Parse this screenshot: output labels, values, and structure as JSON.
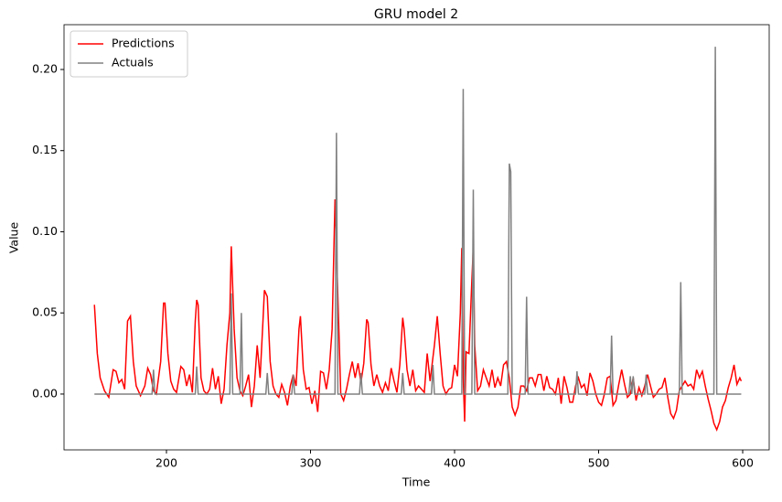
{
  "chart_data": {
    "type": "line",
    "title": "GRU model 2",
    "x_label": "Time",
    "y_label": "Value",
    "xlim": [
      128.9,
      618.4
    ],
    "ylim": [
      -0.0344,
      0.2276
    ],
    "xticks": [
      200,
      300,
      400,
      500,
      600
    ],
    "yticks": [
      {
        "value": 0,
        "label": "0.00"
      },
      0.05,
      {
        "value": 0.1,
        "label": "0.10"
      },
      0.15,
      {
        "value": 0.2,
        "label": "0.20"
      }
    ],
    "legend": "upper left",
    "series": [
      {
        "name": "Predictions",
        "color": "#ff0000",
        "x": [
          150,
          152,
          154,
          157,
          160,
          163,
          165,
          167,
          169,
          171,
          173,
          175,
          177,
          179,
          182,
          185,
          187,
          189,
          191,
          193,
          196,
          198,
          199,
          201,
          203,
          205,
          207,
          210,
          212,
          214,
          216,
          218,
          220,
          221,
          222,
          224,
          226,
          228,
          230,
          232,
          234,
          236,
          238,
          240,
          242,
          244,
          245,
          247,
          249,
          251,
          253,
          255,
          257,
          259,
          261,
          263,
          265,
          267,
          268,
          270,
          272,
          274,
          276,
          278,
          280,
          282,
          284,
          286,
          288,
          290,
          292,
          293,
          295,
          297,
          299,
          301,
          303,
          305,
          307,
          309,
          311,
          313,
          315,
          317,
          319,
          321,
          323,
          325,
          327,
          329,
          331,
          333,
          335,
          337,
          339,
          340,
          342,
          344,
          346,
          348,
          350,
          352,
          354,
          356,
          358,
          360,
          362,
          364,
          365,
          367,
          369,
          371,
          373,
          375,
          377,
          379,
          381,
          383,
          386,
          388,
          390,
          392,
          394,
          396,
          398,
          400,
          402,
          404,
          405,
          406,
          407,
          408,
          410,
          412,
          413,
          414,
          416,
          418,
          420,
          422,
          424,
          426,
          428,
          430,
          432,
          434,
          436,
          438,
          440,
          442,
          444,
          446,
          448,
          450,
          452,
          454,
          456,
          458,
          460,
          462,
          464,
          466,
          468,
          470,
          472,
          474,
          476,
          478,
          480,
          482,
          484,
          486,
          488,
          490,
          492,
          494,
          496,
          498,
          500,
          502,
          504,
          506,
          508,
          510,
          512,
          514,
          516,
          518,
          520,
          522,
          524,
          526,
          528,
          530,
          532,
          534,
          536,
          538,
          540,
          542,
          544,
          546,
          548,
          550,
          552,
          554,
          556,
          558,
          560,
          562,
          564,
          566,
          568,
          570,
          572,
          574,
          576,
          578,
          580,
          582,
          584,
          586,
          588,
          590,
          592,
          594,
          596,
          598,
          599
        ],
        "values": [
          0.055,
          0.025,
          0.01,
          0.002,
          -0.002,
          0.015,
          0.014,
          0.007,
          0.009,
          0.003,
          0.045,
          0.048,
          0.02,
          0.005,
          -0.001,
          0.005,
          0.016,
          0.012,
          0.002,
          0.0,
          0.02,
          0.056,
          0.056,
          0.025,
          0.008,
          0.003,
          0.001,
          0.017,
          0.015,
          0.005,
          0.012,
          0.001,
          0.045,
          0.058,
          0.055,
          0.01,
          0.002,
          0.0,
          0.003,
          0.016,
          0.003,
          0.011,
          -0.006,
          0.003,
          0.03,
          0.05,
          0.091,
          0.04,
          0.01,
          0.002,
          -0.001,
          0.005,
          0.012,
          -0.008,
          0.005,
          0.03,
          0.01,
          0.045,
          0.064,
          0.06,
          0.02,
          0.005,
          0.0,
          -0.002,
          0.006,
          0.001,
          -0.007,
          0.005,
          0.012,
          0.005,
          0.04,
          0.048,
          0.015,
          0.003,
          0.004,
          -0.006,
          0.002,
          -0.011,
          0.014,
          0.013,
          0.003,
          0.015,
          0.04,
          0.12,
          0.06,
          0.0,
          -0.004,
          0.003,
          0.012,
          0.02,
          0.01,
          0.019,
          0.007,
          0.019,
          0.046,
          0.044,
          0.018,
          0.005,
          0.012,
          0.005,
          0.001,
          0.007,
          0.002,
          0.016,
          0.008,
          0.001,
          0.018,
          0.047,
          0.04,
          0.015,
          0.005,
          0.015,
          0.002,
          0.005,
          0.003,
          0.001,
          0.025,
          0.008,
          0.03,
          0.048,
          0.025,
          0.005,
          0.0,
          0.003,
          0.004,
          0.018,
          0.011,
          0.05,
          0.09,
          0.01,
          -0.017,
          0.026,
          0.025,
          0.07,
          0.09,
          0.03,
          0.002,
          0.005,
          0.015,
          0.01,
          0.005,
          0.015,
          0.004,
          0.01,
          0.005,
          0.018,
          0.02,
          0.01,
          -0.008,
          -0.013,
          -0.008,
          0.005,
          0.005,
          0.002,
          0.01,
          0.01,
          0.005,
          0.012,
          0.012,
          0.002,
          0.011,
          0.004,
          0.003,
          0.0,
          0.01,
          -0.006,
          0.011,
          0.004,
          -0.005,
          -0.005,
          0.005,
          0.01,
          0.004,
          0.006,
          -0.001,
          0.013,
          0.008,
          0.0,
          -0.005,
          -0.007,
          0.0,
          0.01,
          0.011,
          -0.007,
          -0.004,
          0.006,
          0.015,
          0.006,
          -0.002,
          0.0,
          0.01,
          -0.004,
          0.004,
          -0.001,
          0.005,
          0.012,
          0.005,
          -0.002,
          0.0,
          0.003,
          0.004,
          0.01,
          -0.002,
          -0.012,
          -0.015,
          -0.01,
          0.002,
          0.005,
          0.008,
          0.005,
          0.006,
          0.003,
          0.015,
          0.01,
          0.014,
          0.005,
          -0.003,
          -0.01,
          -0.018,
          -0.022,
          -0.017,
          -0.008,
          -0.004,
          0.004,
          0.01,
          0.018,
          0.006,
          0.01,
          0.008
        ]
      },
      {
        "name": "Actuals",
        "color": "#808080",
        "x": [
          150,
          190,
          191,
          192,
          220,
          221,
          222,
          244,
          245,
          246,
          251,
          252,
          253,
          269,
          270,
          271,
          287,
          288,
          289,
          317,
          318,
          319,
          334,
          335,
          336,
          363,
          364,
          365,
          384,
          385,
          386,
          405,
          406,
          407,
          412,
          413,
          414,
          437,
          438,
          439,
          440,
          449,
          450,
          451,
          484,
          485,
          486,
          508,
          509,
          510,
          521,
          522,
          523,
          524,
          525,
          532,
          533,
          534,
          556,
          557,
          558,
          580,
          581,
          582,
          599
        ],
        "values": [
          0,
          0,
          0.015,
          0,
          0,
          0.017,
          0,
          0,
          0.062,
          0,
          0,
          0.05,
          0,
          0,
          0.013,
          0,
          0,
          0.012,
          0,
          0,
          0.161,
          0,
          0,
          0.013,
          0,
          0,
          0.013,
          0,
          0,
          0.018,
          0,
          0,
          0.188,
          0,
          0,
          0.126,
          0,
          0,
          0.142,
          0.137,
          0,
          0,
          0.06,
          0,
          0,
          0.014,
          0,
          0,
          0.036,
          0,
          0,
          0.011,
          0,
          0.011,
          0,
          0,
          0.012,
          0,
          0,
          0.069,
          0,
          0,
          0.214,
          0,
          0
        ]
      }
    ]
  }
}
